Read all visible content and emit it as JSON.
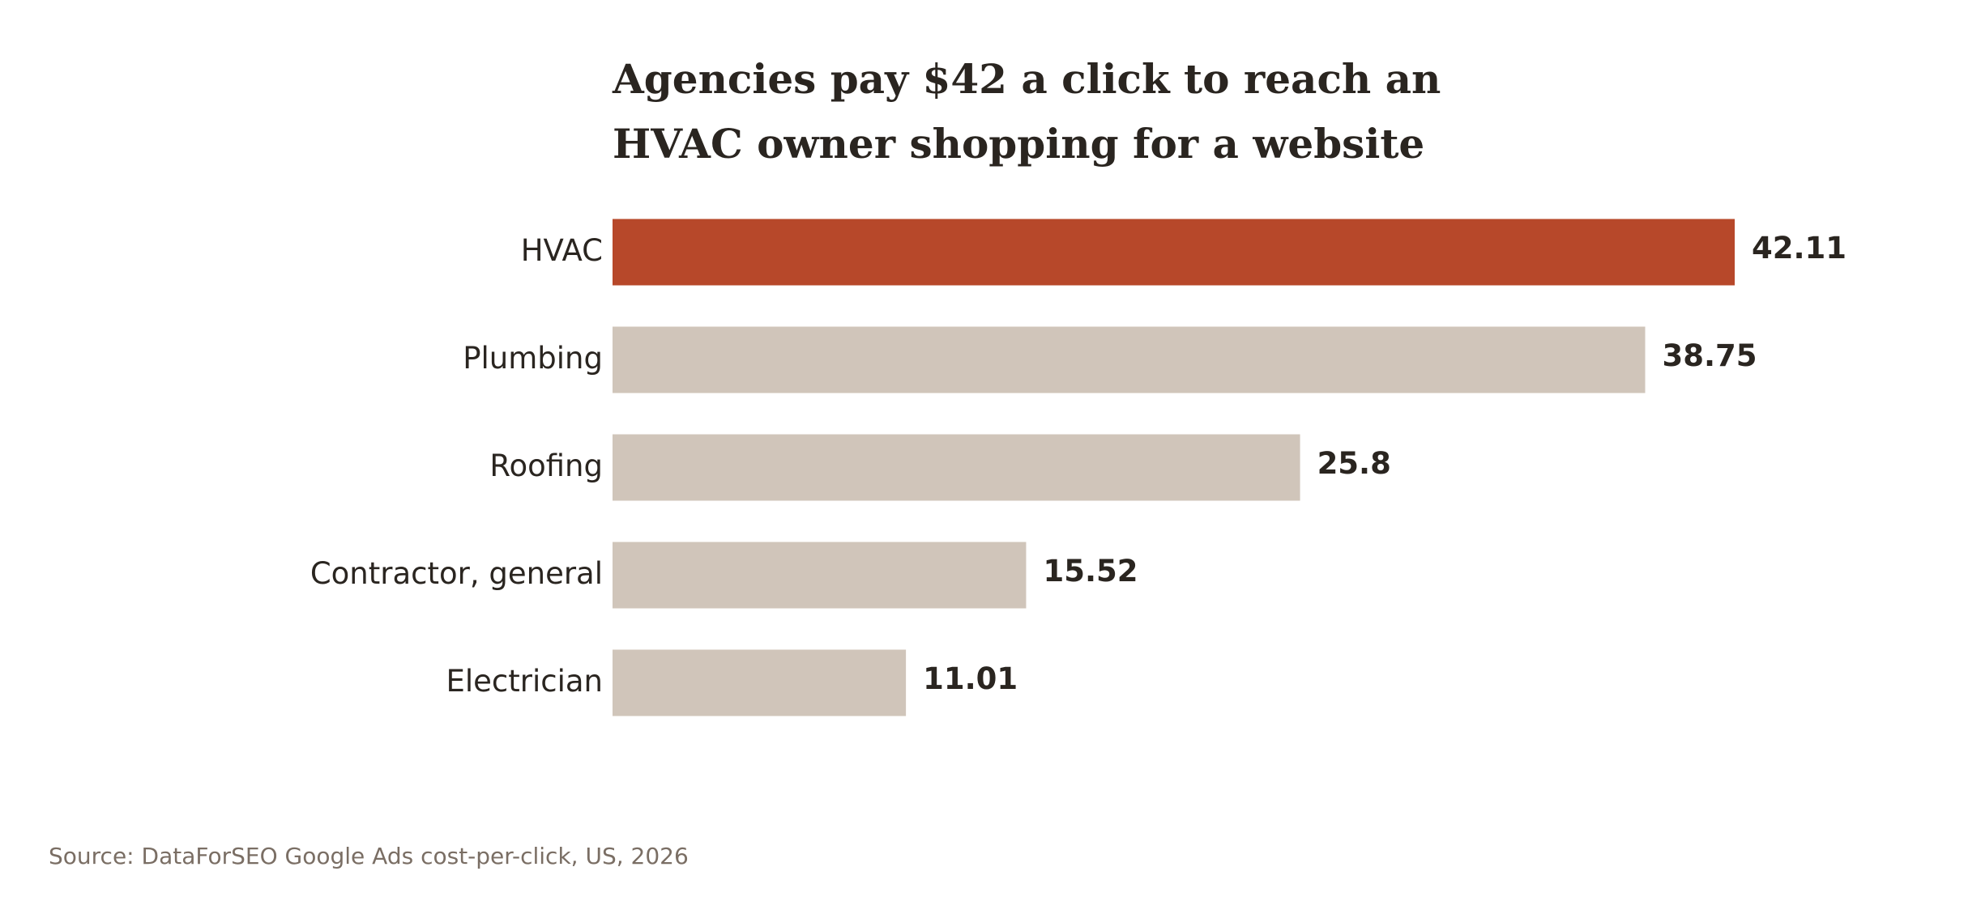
{
  "chart_data": {
    "type": "hbar",
    "title": "Agencies pay $42 a click to reach an HVAC owner shopping for a website",
    "categories": [
      "HVAC",
      "Plumbing",
      "Roofing",
      "Contractor, general",
      "Electrician"
    ],
    "values": [
      42.11,
      38.75,
      25.8,
      15.52,
      11.01
    ],
    "colors": [
      "#b7482a",
      "#d0c5ba",
      "#d0c5ba",
      "#d0c5ba",
      "#d0c5ba"
    ],
    "source": "Source: DataForSEO Google Ads cost-per-click, US, 2026"
  }
}
